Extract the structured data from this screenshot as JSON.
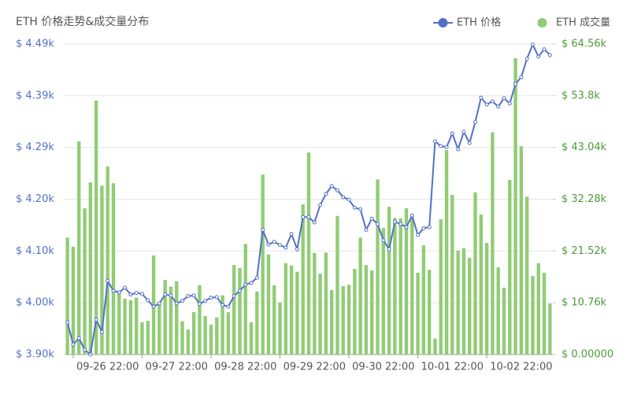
{
  "chart_data": {
    "type": "combo",
    "title": "ETH 价格走势&成交量分布",
    "categories": [
      null,
      null,
      null,
      null,
      null,
      null,
      null,
      "09-26 22:00",
      null,
      null,
      null,
      null,
      null,
      null,
      null,
      null,
      null,
      null,
      null,
      "09-27 22:00",
      null,
      null,
      null,
      null,
      null,
      null,
      null,
      null,
      null,
      null,
      null,
      "09-28 22:00",
      null,
      null,
      null,
      null,
      null,
      null,
      null,
      null,
      null,
      null,
      null,
      "09-29 22:00",
      null,
      null,
      null,
      null,
      null,
      null,
      null,
      null,
      null,
      null,
      null,
      "09-30 22:00",
      null,
      null,
      null,
      null,
      null,
      null,
      null,
      null,
      null,
      null,
      null,
      "10-01 22:00",
      null,
      null,
      null,
      null,
      null,
      null,
      null,
      null,
      null,
      null,
      null,
      "10-02 22:00",
      null,
      null,
      null,
      null,
      null
    ],
    "series": [
      {
        "name": "ETH 价格",
        "type": "line",
        "axis": "y",
        "color": "#5470c6",
        "values": [
          3961,
          3919,
          3931,
          3909,
          3900,
          3966,
          3943,
          4040,
          4021,
          4018,
          4027,
          4014,
          4017,
          4015,
          4003,
          3991,
          3997,
          4014,
          4012,
          3997,
          4002,
          4011,
          4012,
          3996,
          4002,
          4008,
          4009,
          3994,
          3991,
          4011,
          4021,
          4033,
          4036,
          4046,
          4137,
          4109,
          4114,
          4108,
          4103,
          4129,
          4100,
          4161,
          4161,
          4151,
          4184,
          4205,
          4220,
          4212,
          4199,
          4194,
          4179,
          4176,
          4137,
          4158,
          4148,
          4117,
          4100,
          4152,
          4148,
          4142,
          4164,
          4127,
          4140,
          4142,
          4305,
          4296,
          4294,
          4320,
          4290,
          4323,
          4302,
          4342,
          4388,
          4375,
          4381,
          4371,
          4387,
          4377,
          4414,
          4427,
          4462,
          4489,
          4466,
          4480,
          4469
        ]
      },
      {
        "name": "ETH 成交量",
        "type": "bar",
        "axis": "y2",
        "color": "#91cc75",
        "values": [
          24300,
          22400,
          44300,
          30400,
          35800,
          52800,
          35100,
          39100,
          35600,
          13200,
          11600,
          11300,
          11800,
          6700,
          7000,
          20600,
          10800,
          15500,
          14100,
          15200,
          6900,
          5200,
          8800,
          14400,
          8000,
          6200,
          7700,
          12300,
          8800,
          18600,
          18000,
          23000,
          6700,
          13100,
          37400,
          20800,
          14400,
          10800,
          19000,
          18500,
          17200,
          31200,
          42000,
          21100,
          16800,
          21200,
          13400,
          28800,
          14200,
          14500,
          17800,
          24300,
          18600,
          17500,
          36400,
          26300,
          30700,
          28400,
          28300,
          30400,
          29200,
          17000,
          22700,
          17600,
          3300,
          28100,
          42500,
          33200,
          21600,
          22100,
          20100,
          33700,
          29100,
          23200,
          46200,
          18100,
          13900,
          36300,
          61600,
          43300,
          32800,
          16300,
          19000,
          17000,
          10600
        ]
      }
    ],
    "ylim": [
      3900,
      4490
    ],
    "yticks": [
      {
        "value": 3900,
        "label": "$ 3.90k"
      },
      {
        "value": 3998.3,
        "label": "$ 4.00k"
      },
      {
        "value": 4096.7,
        "label": "$ 4.10k"
      },
      {
        "value": 4195,
        "label": "$ 4.20k"
      },
      {
        "value": 4293.3,
        "label": "$ 4.29k"
      },
      {
        "value": 4391.7,
        "label": "$ 4.39k"
      },
      {
        "value": 4490,
        "label": "$ 4.49k"
      }
    ],
    "y2lim": [
      0,
      64560
    ],
    "y2ticks": [
      {
        "value": 0,
        "label": "$ 0.00000"
      },
      {
        "value": 10760,
        "label": "$ 10.76k"
      },
      {
        "value": 21520,
        "label": "$ 21.52k"
      },
      {
        "value": 32280,
        "label": "$ 32.28k"
      },
      {
        "value": 43040,
        "label": "$ 43.04k"
      },
      {
        "value": 53800,
        "label": "$ 53.8k"
      },
      {
        "value": 64560,
        "label": "$ 64.56k"
      }
    ],
    "grid": true
  }
}
